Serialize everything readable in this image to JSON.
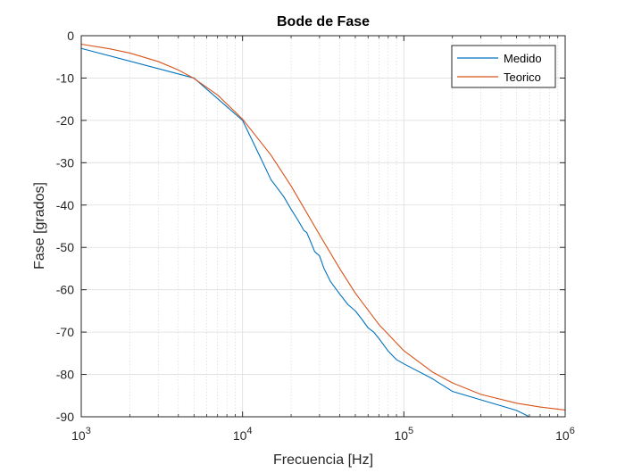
{
  "chart_data": {
    "type": "line",
    "title": "Bode de Fase",
    "xlabel": "Frecuencia [Hz]",
    "ylabel": "Fase [grados]",
    "xscale": "log",
    "xlim": [
      1000,
      1000000
    ],
    "ylim": [
      -90,
      0
    ],
    "grid": true,
    "minor_grid_x": true,
    "legend_position": "top-right",
    "x_tick_labels": [
      {
        "base": "10",
        "exp": "3"
      },
      {
        "base": "10",
        "exp": "4"
      },
      {
        "base": "10",
        "exp": "5"
      },
      {
        "base": "10",
        "exp": "6"
      }
    ],
    "y_ticks": [
      0,
      -10,
      -20,
      -30,
      -40,
      -50,
      -60,
      -70,
      -80,
      -90
    ],
    "series": [
      {
        "name": "Medido",
        "color": "#0072bd",
        "x": [
          1000,
          5000,
          10000,
          13000,
          15000,
          18000,
          20000,
          22000,
          24000,
          25000,
          26000,
          28000,
          30000,
          32000,
          35000,
          40000,
          45000,
          50000,
          55000,
          60000,
          65000,
          70000,
          80000,
          90000,
          100000,
          150000,
          200000,
          300000,
          500000,
          600000,
          1000000
        ],
        "y": [
          -3,
          -10,
          -20,
          -29,
          -34,
          -38,
          -41,
          -43.5,
          -46,
          -46.5,
          -48,
          -51,
          -52,
          -55,
          -58,
          -61,
          -63.5,
          -65,
          -67,
          -69,
          -70,
          -71.5,
          -74.5,
          -76.5,
          -77.5,
          -81,
          -84,
          -86,
          -88.5,
          -90,
          -90
        ]
      },
      {
        "name": "Teorico",
        "color": "#d95319",
        "fc": 28000,
        "x": [
          1000,
          1500,
          2000,
          3000,
          4000,
          5000,
          7000,
          10000,
          15000,
          20000,
          30000,
          40000,
          50000,
          70000,
          100000,
          150000,
          200000,
          300000,
          500000,
          700000,
          1000000
        ],
        "y": [
          -2.0,
          -3.1,
          -4.1,
          -6.1,
          -8.1,
          -10.1,
          -14.0,
          -19.7,
          -28.2,
          -35.5,
          -47.0,
          -55.0,
          -60.8,
          -68.2,
          -74.4,
          -79.4,
          -82.0,
          -84.7,
          -86.8,
          -87.7,
          -88.4
        ]
      }
    ]
  }
}
